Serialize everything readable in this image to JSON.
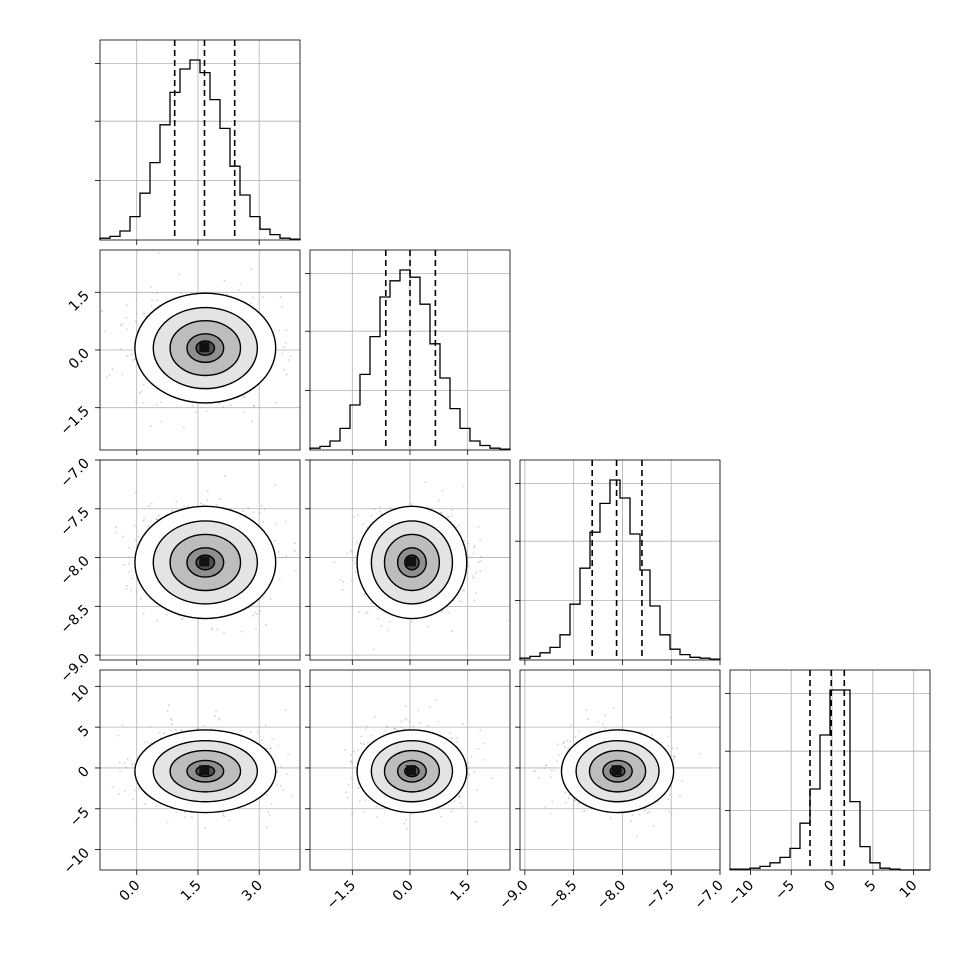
{
  "chart_data": {
    "type": "corner",
    "grid": true,
    "hist_bins": 20,
    "quantiles": [
      0.16,
      0.5,
      0.84
    ],
    "colors": {
      "frame": "#000000",
      "grid": "#b0b0b0",
      "line": "#000000",
      "scatter": "#9a9a9a"
    },
    "params": [
      {
        "id": "p0",
        "range": [
          -0.9,
          4.0
        ],
        "ticks": [
          0.0,
          1.5,
          3.0
        ],
        "tick_labels": [
          "0.0",
          "1.5",
          "3.0"
        ],
        "mean": 1.68,
        "sd": 0.75,
        "quantile_values": [
          0.93,
          1.66,
          2.4
        ],
        "hist": [
          0.01,
          0.02,
          0.05,
          0.13,
          0.26,
          0.43,
          0.64,
          0.82,
          0.95,
          1.0,
          0.93,
          0.78,
          0.62,
          0.41,
          0.25,
          0.13,
          0.06,
          0.03,
          0.01,
          0.005
        ]
      },
      {
        "id": "p1",
        "range": [
          -2.6,
          2.6
        ],
        "ticks": [
          -1.5,
          0.0,
          1.5
        ],
        "tick_labels": [
          "−1.5",
          "0.0",
          "1.5"
        ],
        "mean": 0.05,
        "sd": 0.62,
        "quantile_values": [
          -0.63,
          0.0,
          0.66
        ],
        "hist": [
          0.01,
          0.02,
          0.05,
          0.12,
          0.25,
          0.42,
          0.63,
          0.85,
          0.94,
          1.0,
          0.96,
          0.81,
          0.59,
          0.4,
          0.23,
          0.12,
          0.05,
          0.025,
          0.01,
          0.005
        ]
      },
      {
        "id": "p2",
        "range": [
          -9.05,
          -7.0
        ],
        "ticks": [
          -9.0,
          -8.5,
          -8.0,
          -7.5,
          -7.0
        ],
        "tick_labels": [
          "−9.0",
          "−8.5",
          "−8.0",
          "−7.5",
          "−7.0"
        ],
        "mean": -8.05,
        "sd": 0.25,
        "quantile_values": [
          -8.31,
          -8.06,
          -7.8
        ],
        "hist": [
          0.01,
          0.02,
          0.04,
          0.07,
          0.14,
          0.31,
          0.51,
          0.71,
          0.87,
          1.0,
          0.9,
          0.7,
          0.5,
          0.3,
          0.14,
          0.06,
          0.03,
          0.015,
          0.01,
          0.005
        ]
      },
      {
        "id": "p3",
        "range": [
          -12.5,
          12.0
        ],
        "ticks": [
          -10,
          -5,
          0,
          5,
          10
        ],
        "tick_labels": [
          "−10",
          "−5",
          "0",
          "5",
          "10"
        ],
        "mean": -0.4,
        "sd": 2.2,
        "quantile_values": [
          -2.7,
          -0.1,
          1.5
        ],
        "hist": [
          0.005,
          0.005,
          0.01,
          0.02,
          0.04,
          0.07,
          0.12,
          0.26,
          0.45,
          0.75,
          1.0,
          1.0,
          0.38,
          0.13,
          0.04,
          0.01,
          0.005,
          0.0,
          0.0,
          0.0
        ]
      }
    ]
  }
}
